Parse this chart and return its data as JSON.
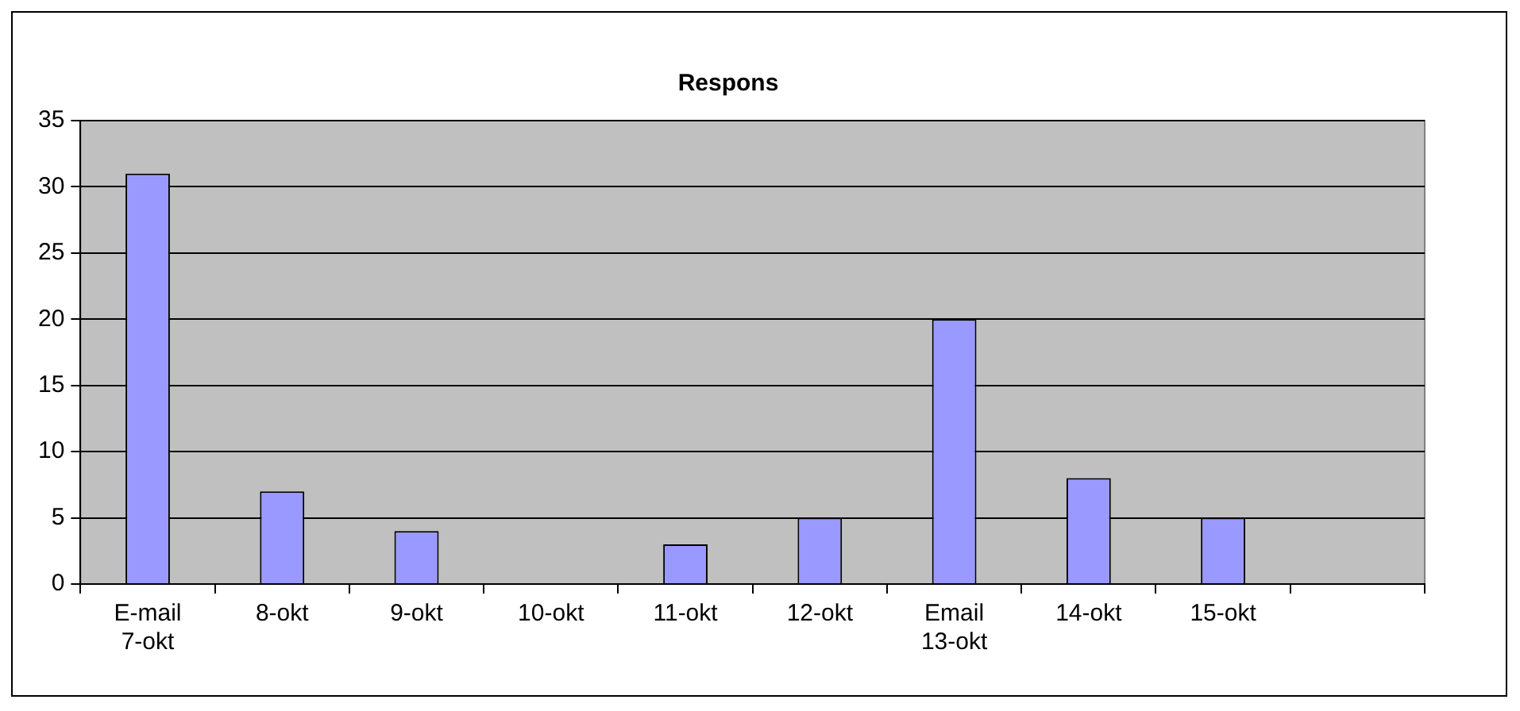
{
  "chart_data": {
    "type": "bar",
    "title": "Respons",
    "categories": [
      "E-mail\n7-okt",
      "8-okt",
      "9-okt",
      "10-okt",
      "11-okt",
      "12-okt",
      "Email\n13-okt",
      "14-okt",
      "15-okt",
      null
    ],
    "values": [
      31,
      7,
      4,
      0,
      3,
      5,
      20,
      8,
      5,
      null
    ],
    "color": "#9999ff",
    "ylim": [
      0,
      35
    ],
    "yticks": [
      0,
      5,
      10,
      15,
      20,
      25,
      30,
      35
    ],
    "grid": "y",
    "legend": false
  }
}
